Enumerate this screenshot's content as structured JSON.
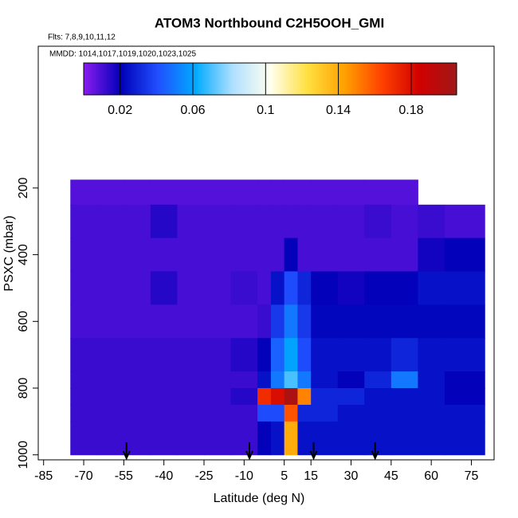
{
  "chart_data": {
    "type": "heatmap",
    "title": "ATOM3 Northbound C2H5OOH_GMI",
    "subtitle": "Flts: 7,8,9,10,11,12",
    "annotation": "MMDD: 1014,1017,1019,1020,1023,1025",
    "x_label": "Latitude (deg N)",
    "y_label": "PSXC (mbar)",
    "xlim": [
      -87,
      83.5
    ],
    "ylim": [
      1015,
      -225
    ],
    "xticks": [
      -85,
      -70,
      -55,
      -40,
      -25,
      -10,
      5,
      15,
      30,
      45,
      60,
      75
    ],
    "yticks": [
      200,
      400,
      600,
      800,
      1000
    ],
    "x_edges": [
      -75,
      -65,
      -55,
      -45,
      -35,
      -25,
      -15,
      -5,
      0,
      5,
      10,
      15,
      25,
      35,
      45,
      55,
      65,
      80
    ],
    "y_edges": [
      175,
      250,
      350,
      450,
      550,
      650,
      750,
      800,
      850,
      900,
      1000
    ],
    "values": [
      [
        0.008,
        0.008,
        0.008,
        0.008,
        0.008,
        0.008,
        0.008,
        0.008,
        0.008,
        0.008,
        0.008,
        0.008,
        0.008,
        0.008,
        0.008,
        null,
        null
      ],
      [
        0.01,
        0.01,
        0.01,
        0.015,
        0.01,
        0.01,
        0.01,
        0.01,
        0.01,
        0.01,
        0.01,
        0.01,
        0.01,
        0.012,
        0.01,
        0.012,
        0.01
      ],
      [
        0.01,
        0.01,
        0.01,
        0.01,
        0.01,
        0.01,
        0.01,
        0.01,
        0.01,
        0.02,
        0.01,
        0.01,
        0.01,
        0.01,
        0.01,
        0.018,
        0.02
      ],
      [
        0.01,
        0.01,
        0.01,
        0.015,
        0.01,
        0.01,
        0.012,
        0.01,
        0.025,
        0.04,
        0.03,
        0.02,
        0.018,
        0.02,
        0.02,
        0.025,
        0.025
      ],
      [
        0.01,
        0.01,
        0.01,
        0.01,
        0.01,
        0.01,
        0.01,
        0.012,
        0.035,
        0.05,
        0.035,
        0.022,
        0.022,
        0.022,
        0.022,
        0.022,
        0.022
      ],
      [
        0.012,
        0.012,
        0.012,
        0.012,
        0.012,
        0.012,
        0.015,
        0.02,
        0.045,
        0.06,
        0.04,
        0.025,
        0.025,
        0.025,
        0.03,
        0.025,
        0.025
      ],
      [
        0.012,
        0.012,
        0.012,
        0.012,
        0.012,
        0.012,
        0.012,
        0.025,
        0.05,
        0.07,
        0.05,
        0.025,
        0.02,
        0.03,
        0.05,
        0.025,
        0.02
      ],
      [
        0.012,
        0.012,
        0.012,
        0.012,
        0.012,
        0.012,
        0.015,
        0.17,
        0.18,
        0.2,
        0.15,
        0.03,
        0.03,
        0.025,
        0.025,
        0.025,
        0.02
      ],
      [
        0.012,
        0.012,
        0.012,
        0.012,
        0.012,
        0.012,
        0.012,
        0.04,
        0.04,
        0.16,
        0.03,
        0.03,
        0.025,
        0.025,
        0.025,
        0.025,
        0.025
      ],
      [
        0.012,
        0.012,
        0.012,
        0.012,
        0.012,
        0.012,
        0.012,
        0.02,
        0.025,
        0.14,
        0.025,
        0.025,
        0.025,
        0.025,
        0.025,
        0.025,
        0.025
      ]
    ],
    "clim": [
      0,
      0.205
    ],
    "cticks": [
      0.02,
      0.06,
      0.1,
      0.14,
      0.18
    ],
    "colormap": [
      "#8a1cf0",
      "#0000b8",
      "#2050ff",
      "#00aaff",
      "#b0e0ff",
      "#fffff0",
      "#ffe040",
      "#ffa000",
      "#ff4000",
      "#d00000",
      "#a01818"
    ],
    "arrows_x": [
      -54,
      -8,
      16,
      39
    ]
  }
}
